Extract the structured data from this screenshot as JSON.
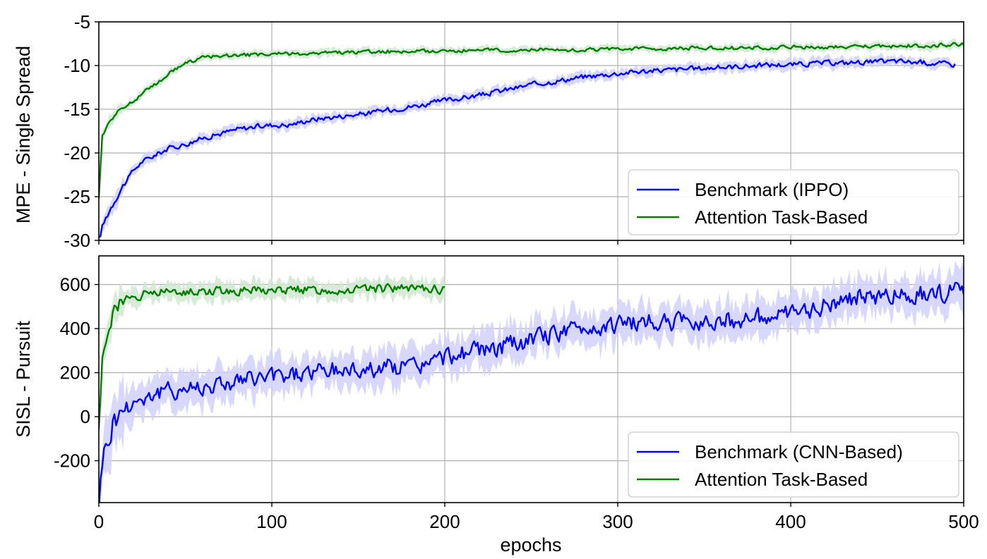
{
  "chart_data": [
    {
      "type": "line",
      "ylabel": "MPE - Single Spread",
      "xlim": [
        0,
        500
      ],
      "ylim": [
        -30,
        -5
      ],
      "yticks": [
        -5,
        -10,
        -15,
        -20,
        -25,
        -30
      ],
      "tick_labels_y": [
        "-5",
        "-10",
        "-15",
        "-20",
        "-25",
        "-30"
      ],
      "grid": true,
      "legend_position": "bottom-right",
      "series": [
        {
          "name": "Benchmark (IPPO)",
          "color": "#0000ff",
          "x": [
            0,
            2,
            5,
            10,
            15,
            20,
            25,
            30,
            40,
            50,
            60,
            70,
            80,
            90,
            100,
            110,
            120,
            130,
            140,
            150,
            160,
            170,
            180,
            190,
            200,
            210,
            220,
            230,
            240,
            250,
            260,
            270,
            280,
            290,
            300,
            310,
            320,
            330,
            340,
            350,
            360,
            370,
            380,
            390,
            400,
            410,
            420,
            430,
            440,
            450,
            460,
            470,
            480,
            490,
            495
          ],
          "y": [
            -30,
            -28.5,
            -27,
            -25,
            -23.5,
            -22,
            -21,
            -20.5,
            -19.5,
            -19,
            -18.3,
            -17.8,
            -17.3,
            -17,
            -16.8,
            -16.8,
            -16.3,
            -16,
            -15.8,
            -15.6,
            -15.3,
            -15,
            -14.7,
            -14.4,
            -14,
            -13.7,
            -13.4,
            -13,
            -12.6,
            -12.2,
            -11.9,
            -11.6,
            -11.3,
            -11.1,
            -10.9,
            -10.7,
            -10.6,
            -10.5,
            -10.4,
            -10.3,
            -10.2,
            -10.1,
            -10,
            -9.9,
            -9.9,
            -9.8,
            -9.7,
            -9.7,
            -9.6,
            -9.6,
            -9.5,
            -9.6,
            -9.7,
            -9.8,
            -9.9
          ]
        },
        {
          "name": "Attention Task-Based",
          "color": "#008000",
          "x": [
            0,
            2,
            5,
            10,
            15,
            20,
            25,
            30,
            35,
            40,
            45,
            50,
            55,
            60,
            70,
            80,
            90,
            100,
            120,
            140,
            160,
            180,
            200,
            220,
            240,
            260,
            280,
            300,
            320,
            340,
            360,
            380,
            400,
            420,
            440,
            460,
            480,
            495,
            500
          ],
          "y": [
            -25,
            -18,
            -16.5,
            -15.5,
            -14.8,
            -14,
            -13.2,
            -12.5,
            -11.8,
            -11,
            -10.3,
            -9.8,
            -9.4,
            -9.1,
            -8.9,
            -8.8,
            -8.8,
            -8.7,
            -8.6,
            -8.5,
            -8.4,
            -8.4,
            -8.3,
            -8.3,
            -8.2,
            -8.2,
            -8.2,
            -8.1,
            -8.1,
            -8,
            -8,
            -8,
            -7.9,
            -7.9,
            -7.8,
            -7.8,
            -7.7,
            -7.6,
            -7.6
          ]
        }
      ]
    },
    {
      "type": "line",
      "xlabel": "epochs",
      "ylabel": "SISL - Pursuit",
      "xlim": [
        0,
        500
      ],
      "ylim": [
        -390,
        730
      ],
      "xticks": [
        0,
        100,
        200,
        300,
        400,
        500
      ],
      "tick_labels_x": [
        "0",
        "100",
        "200",
        "300",
        "400",
        "500"
      ],
      "yticks": [
        600,
        400,
        200,
        0,
        -200
      ],
      "tick_labels_y": [
        "600",
        "400",
        "200",
        "0",
        "-200"
      ],
      "grid": true,
      "legend_position": "bottom-right",
      "series": [
        {
          "name": "Benchmark (CNN-Based)",
          "color": "#0000ff",
          "x": [
            0,
            2,
            5,
            8,
            10,
            15,
            20,
            30,
            40,
            50,
            60,
            70,
            80,
            90,
            100,
            110,
            120,
            130,
            140,
            150,
            160,
            170,
            180,
            190,
            200,
            210,
            220,
            230,
            240,
            250,
            260,
            270,
            280,
            290,
            300,
            310,
            320,
            330,
            340,
            350,
            360,
            370,
            380,
            390,
            400,
            410,
            420,
            430,
            440,
            450,
            460,
            470,
            480,
            490,
            500
          ],
          "y": [
            -390,
            -200,
            -100,
            -40,
            0,
            40,
            70,
            100,
            115,
            130,
            140,
            150,
            160,
            170,
            180,
            190,
            200,
            205,
            210,
            215,
            220,
            225,
            230,
            240,
            270,
            290,
            300,
            310,
            330,
            350,
            370,
            390,
            400,
            410,
            420,
            425,
            430,
            425,
            430,
            435,
            440,
            440,
            450,
            455,
            460,
            480,
            510,
            530,
            540,
            545,
            550,
            555,
            560,
            565,
            570
          ]
        },
        {
          "name": "Attention Task-Based",
          "color": "#008000",
          "x": [
            0,
            2,
            4,
            6,
            8,
            10,
            12,
            15,
            20,
            30,
            40,
            50,
            60,
            80,
            100,
            120,
            140,
            160,
            180,
            200
          ],
          "y": [
            -50,
            250,
            350,
            420,
            460,
            490,
            510,
            530,
            550,
            560,
            565,
            570,
            572,
            575,
            576,
            577,
            578,
            579,
            580,
            580
          ]
        }
      ]
    }
  ]
}
